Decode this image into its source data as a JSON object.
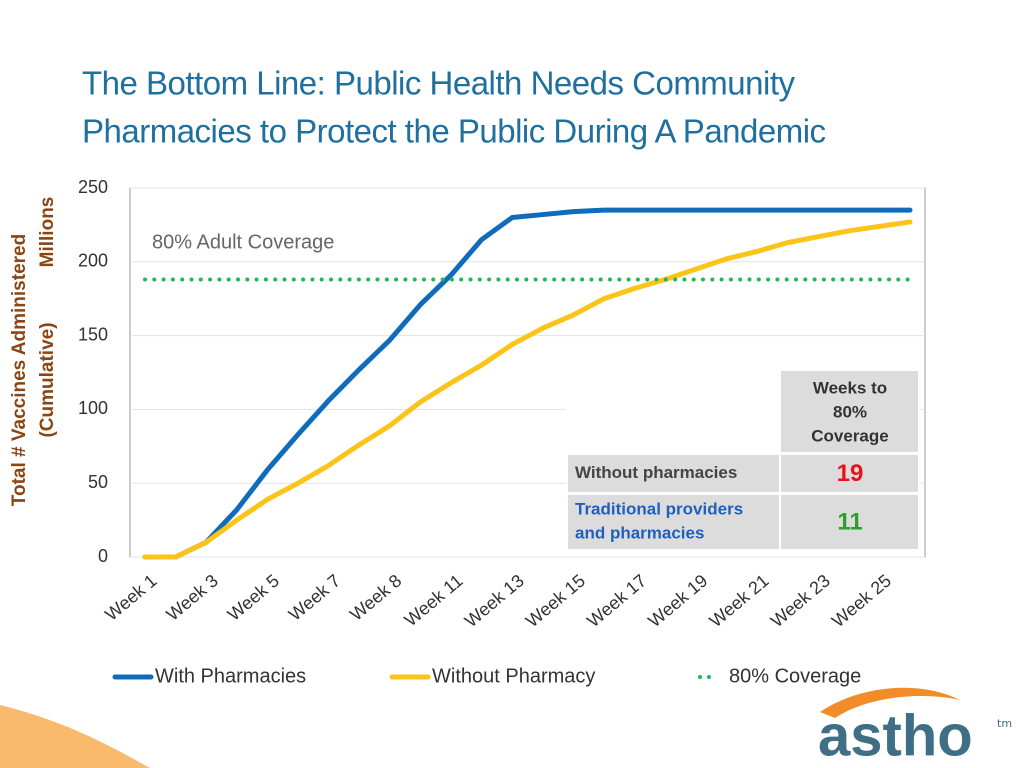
{
  "chart_data": {
    "type": "line",
    "title": [
      "The Bottom Line:  Public Health Needs Community",
      "Pharmacies to Protect the Public During A Pandemic"
    ],
    "y_axis_label": [
      "Total # Vaccines Administered",
      "(Cumulative)"
    ],
    "y_unit": "Millions",
    "annotation": "80% Adult Coverage",
    "categories": [
      "Week 1",
      null,
      "Week 3",
      null,
      "Week 5",
      null,
      "Week 7",
      null,
      "Week 8",
      null,
      "Week 11",
      null,
      "Week  13",
      null,
      "Week 15",
      null,
      "Week 17",
      null,
      "Week 19",
      null,
      "Week 21",
      null,
      "Week 23",
      null,
      "Week 25",
      null
    ],
    "series": [
      {
        "name": "With Pharmacies",
        "color": "#0f6cbd",
        "style": "solid",
        "values": [
          0,
          0,
          10,
          32,
          59,
          83,
          106,
          127,
          147,
          171,
          191,
          215,
          230,
          232,
          234,
          235,
          235,
          235,
          235,
          235,
          235,
          235,
          235,
          235,
          235,
          235
        ]
      },
      {
        "name": "Without Pharmacy",
        "color": "#fcc419",
        "style": "solid",
        "values": [
          0,
          0,
          10,
          25,
          39,
          50,
          62,
          76,
          89,
          105,
          118,
          130,
          144,
          155,
          164,
          175,
          182,
          188,
          195,
          202,
          207,
          213,
          217,
          221,
          224,
          227
        ]
      },
      {
        "name": "80% Coverage",
        "color": "#1db954",
        "style": "dotted",
        "values": [
          188,
          188,
          188,
          188,
          188,
          188,
          188,
          188,
          188,
          188,
          188,
          188,
          188,
          188,
          188,
          188,
          188,
          188,
          188,
          188,
          188,
          188,
          188,
          188,
          188,
          188
        ]
      }
    ],
    "ylim": [
      0,
      250
    ],
    "yticks": [
      0,
      50,
      100,
      150,
      200,
      250
    ],
    "grid": true,
    "legend": "bottom",
    "table": {
      "header": [
        "Weeks to",
        "80%",
        "Coverage"
      ],
      "rows": [
        {
          "label": [
            "Without pharmacies"
          ],
          "value": 19,
          "color": "#e8121c"
        },
        {
          "label": [
            "Traditional providers",
            "and pharmacies"
          ],
          "value": 11,
          "color": "#2ca02c"
        }
      ]
    }
  },
  "logo": {
    "text": "astho",
    "mark": "tm"
  }
}
